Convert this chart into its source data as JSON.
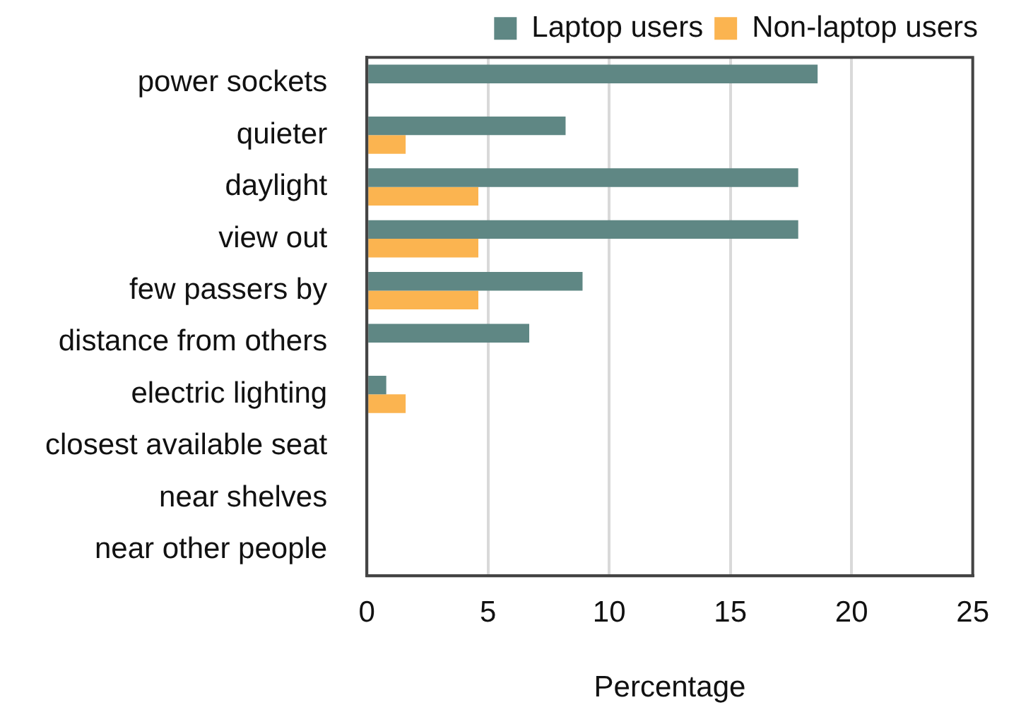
{
  "chart_data": {
    "type": "bar",
    "orientation": "horizontal",
    "xlabel": "Percentage",
    "categories": [
      "power sockets",
      "quieter",
      "daylight",
      "view out",
      "few passers by",
      "distance from others",
      "electric lighting",
      "closest available seat",
      "near shelves",
      "near other people"
    ],
    "series": [
      {
        "name": "Laptop users",
        "color": "#5f8784",
        "values": [
          18.6,
          8.2,
          17.8,
          17.8,
          8.9,
          6.7,
          0.8,
          0,
          0,
          0
        ]
      },
      {
        "name": "Non-laptop users",
        "color": "#fbb450",
        "values": [
          0,
          1.6,
          4.6,
          4.6,
          4.6,
          0,
          1.6,
          0,
          0,
          0
        ]
      }
    ],
    "xlim": [
      0,
      25
    ],
    "xticks": [
      0,
      5,
      10,
      15,
      20,
      25
    ],
    "grid": "x",
    "legend": "top"
  }
}
